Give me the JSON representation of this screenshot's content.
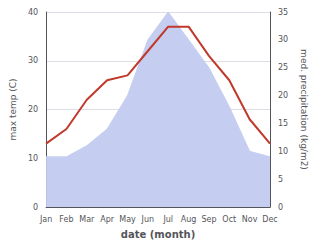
{
  "chart_data": {
    "type": "line",
    "categories": [
      "Jan",
      "Feb",
      "Mar",
      "Apr",
      "May",
      "Jun",
      "Jul",
      "Aug",
      "Sep",
      "Oct",
      "Nov",
      "Dec"
    ],
    "xlabel": "date (month)",
    "ylabel": "max temp (C)",
    "y2label": "med. precipitation (kg/m2)",
    "series": [
      {
        "type": "area",
        "axis": "y2",
        "color": "#c5cef0",
        "values": [
          9,
          9,
          11,
          14,
          20,
          30,
          35,
          30,
          25,
          18,
          10,
          9
        ]
      },
      {
        "type": "line",
        "color": "#c0392b",
        "values": [
          13,
          16,
          22,
          26,
          27,
          32,
          37,
          37,
          31,
          26,
          18,
          13
        ]
      }
    ],
    "ylim": [
      0,
      40
    ],
    "yticks": [
      0,
      10,
      20,
      30,
      40
    ],
    "y2lim": [
      0,
      35
    ],
    "y2ticks": [
      0,
      5,
      10,
      15,
      20,
      25,
      30,
      35
    ],
    "grid": true
  }
}
